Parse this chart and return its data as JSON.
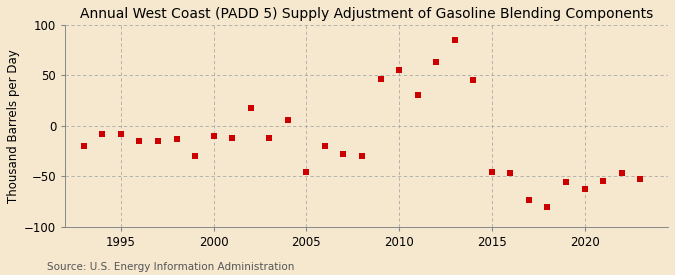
{
  "title": "Annual West Coast (PADD 5) Supply Adjustment of Gasoline Blending Components",
  "ylabel": "Thousand Barrels per Day",
  "source": "Source: U.S. Energy Information Administration",
  "background_color": "#f5e8ce",
  "plot_background_color": "#f5e8ce",
  "marker_color": "#cc0000",
  "years": [
    1993,
    1994,
    1995,
    1996,
    1997,
    1998,
    1999,
    2000,
    2001,
    2002,
    2003,
    2004,
    2005,
    2006,
    2007,
    2008,
    2009,
    2010,
    2011,
    2012,
    2013,
    2014,
    2015,
    2016,
    2017,
    2018,
    2019,
    2020,
    2021,
    2022,
    2023
  ],
  "values": [
    -20,
    -8,
    -8,
    -15,
    -15,
    -13,
    -30,
    -10,
    -12,
    18,
    -12,
    6,
    -46,
    -20,
    -28,
    -30,
    46,
    55,
    31,
    63,
    85,
    45,
    -46,
    -47,
    -73,
    -80,
    -56,
    -63,
    -55,
    -47,
    -53
  ],
  "ylim": [
    -100,
    100
  ],
  "yticks": [
    -100,
    -50,
    0,
    50,
    100
  ],
  "xtick_positions": [
    1995,
    2000,
    2005,
    2010,
    2015,
    2020
  ],
  "xlim": [
    1992,
    2024.5
  ],
  "grid_color": "#aaaaaa",
  "title_fontsize": 10,
  "axis_fontsize": 8.5,
  "source_fontsize": 7.5
}
